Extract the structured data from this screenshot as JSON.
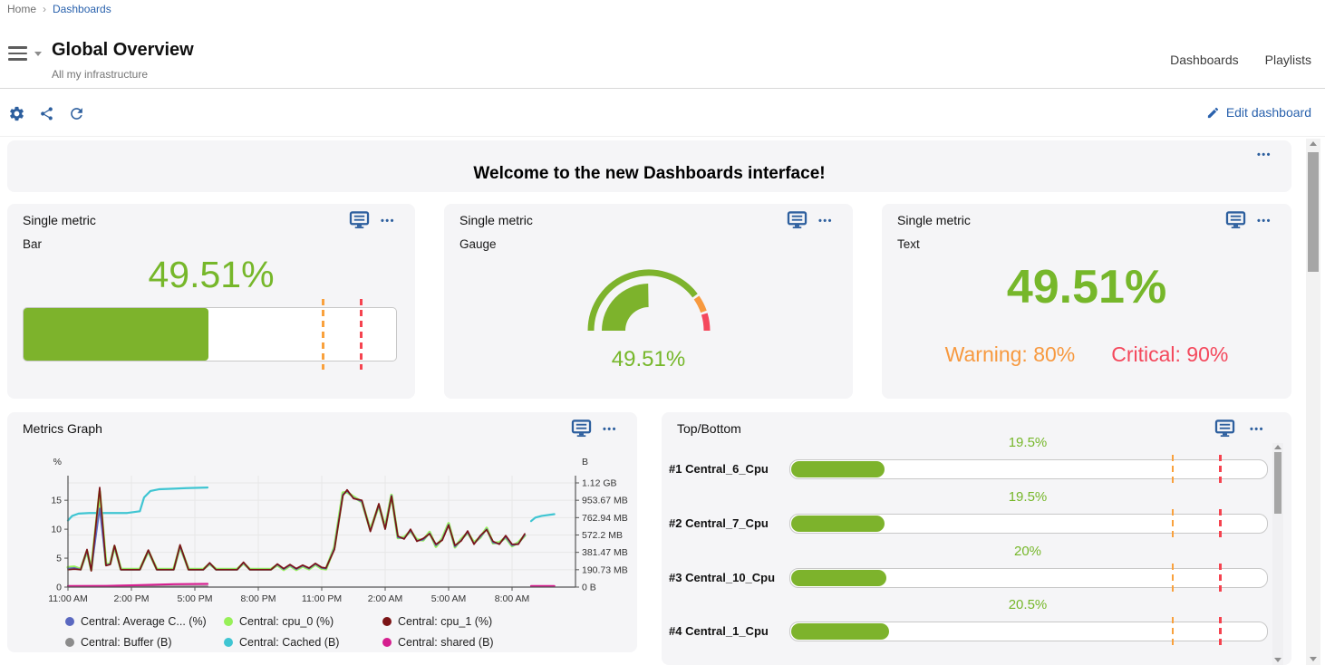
{
  "breadcrumb": {
    "home": "Home",
    "separator": "›",
    "current": "Dashboards"
  },
  "header": {
    "title": "Global Overview",
    "subtitle": "All my infrastructure",
    "tabs": [
      "Dashboards",
      "Playlists"
    ]
  },
  "toolbar": {
    "edit_label": "Edit dashboard"
  },
  "ui": {
    "menu_dots": "•••"
  },
  "banner": {
    "title": "Welcome to the new Dashboards interface!"
  },
  "colors": {
    "accent_blue": "#2d5f9e",
    "link_blue": "#2a62ad",
    "green": "#76b72a",
    "bar_green": "#7db32c",
    "orange": "#f7993f",
    "red": "#f4485c",
    "dash_orange": "#f9a13d",
    "dash_red": "#f5434f"
  },
  "single_metric_cards": {
    "title": "Single metric",
    "value_text": "49.51%",
    "value_pct": 49.51,
    "warning_pct": 80,
    "critical_pct": 90,
    "bar": {
      "label": "Bar"
    },
    "gauge": {
      "label": "Gauge"
    },
    "text": {
      "label": "Text",
      "warning_text": "Warning: 80%",
      "critical_text": "Critical: 90%"
    }
  },
  "metrics_graph": {
    "title": "Metrics Graph"
  },
  "chart_data": {
    "type": "line",
    "title": "Metrics Graph",
    "x_axis": {
      "ticks": [
        "11:00 AM",
        "2:00 PM",
        "5:00 PM",
        "8:00 PM",
        "11:00 PM",
        "2:00 AM",
        "5:00 AM",
        "8:00 AM"
      ],
      "tick_hours": [
        0,
        3,
        6,
        9,
        12,
        15,
        18,
        21
      ],
      "range_hours": [
        0,
        24
      ]
    },
    "y_left": {
      "label": "%",
      "ticks": [
        0,
        5,
        10,
        15
      ],
      "max": 18
    },
    "y_right": {
      "label": "B",
      "ticks": [
        "0 B",
        "190.73 MB",
        "381.47 MB",
        "572.2 MB",
        "762.94 MB",
        "953.67 MB",
        "1.12 GB"
      ]
    },
    "grid": true,
    "legend_position": "bottom",
    "legend": [
      {
        "label": "Central: Average C... (%)",
        "color": "#5a68c0"
      },
      {
        "label": "Central: cpu_0 (%)",
        "color": "#97f058"
      },
      {
        "label": "Central: cpu_1 (%)",
        "color": "#7b1416"
      },
      {
        "label": "Central: Buffer (B)",
        "color": "#8c8c8c"
      },
      {
        "label": "Central: Cached (B)",
        "color": "#3fc5d2"
      },
      {
        "label": "Central: shared (B)",
        "color": "#d51f8f"
      }
    ],
    "series": [
      {
        "name": "Central: Buffer (B)",
        "color": "#8c8c8c",
        "width": 2,
        "segments": [
          [
            [
              0,
              0.08
            ],
            [
              6.6,
              0.12
            ]
          ],
          [
            [
              21.9,
              0.08
            ],
            [
              23,
              0.08
            ]
          ]
        ]
      },
      {
        "name": "Central: shared (B)",
        "color": "#d51f8f",
        "width": 2.2,
        "segments": [
          [
            [
              0,
              0.18
            ],
            [
              1.8,
              0.2
            ],
            [
              3,
              0.3
            ],
            [
              4,
              0.4
            ],
            [
              5,
              0.5
            ],
            [
              6.6,
              0.55
            ]
          ],
          [
            [
              21.9,
              0.18
            ],
            [
              23,
              0.18
            ]
          ]
        ]
      },
      {
        "name": "Central: Cached (B)",
        "color": "#3fc5d2",
        "width": 2.2,
        "segments": [
          [
            [
              0,
              11.5
            ],
            [
              0.2,
              12.3
            ],
            [
              0.5,
              12.7
            ],
            [
              1,
              12.8
            ],
            [
              2.8,
              12.8
            ],
            [
              3.2,
              13
            ],
            [
              3.4,
              13.1
            ],
            [
              3.6,
              15.5
            ],
            [
              3.9,
              16.6
            ],
            [
              4.3,
              16.9
            ],
            [
              5,
              17
            ],
            [
              5.6,
              17.1
            ],
            [
              6.6,
              17.2
            ]
          ],
          [
            [
              21.9,
              11.4
            ],
            [
              22.1,
              12
            ],
            [
              22.4,
              12.3
            ],
            [
              23,
              12.6
            ]
          ]
        ]
      },
      {
        "name": "Central: cpu_0 (%)",
        "color": "#97f058",
        "width": 3,
        "segments": [
          [
            [
              0,
              3.4
            ],
            [
              0.3,
              3.5
            ],
            [
              0.6,
              3.1
            ],
            [
              0.9,
              6.2
            ],
            [
              1.1,
              3
            ],
            [
              1.5,
              16.5
            ],
            [
              1.8,
              3.9
            ],
            [
              2,
              4.1
            ],
            [
              2.2,
              7
            ],
            [
              2.5,
              3.1
            ],
            [
              3.4,
              3.1
            ],
            [
              3.8,
              6.2
            ],
            [
              4.2,
              3.1
            ],
            [
              5,
              3.1
            ],
            [
              5.3,
              7
            ],
            [
              5.7,
              3.1
            ],
            [
              6.4,
              3.1
            ],
            [
              6.7,
              4
            ],
            [
              7,
              3.1
            ],
            [
              8,
              3.1
            ],
            [
              8.3,
              4.1
            ],
            [
              8.6,
              3.1
            ],
            [
              9.6,
              3.1
            ],
            [
              9.9,
              3.8
            ],
            [
              10.2,
              3
            ],
            [
              10.5,
              3.7
            ],
            [
              10.8,
              3
            ],
            [
              11.1,
              3.6
            ],
            [
              11.4,
              3.1
            ],
            [
              11.7,
              3.9
            ],
            [
              12,
              3.2
            ],
            [
              12.2,
              3.1
            ],
            [
              12.6,
              6.9
            ],
            [
              13,
              16.3
            ],
            [
              13.2,
              16.4
            ],
            [
              13.5,
              15.6
            ],
            [
              13.9,
              14.7
            ],
            [
              14.3,
              9.9
            ],
            [
              14.7,
              14.1
            ],
            [
              15,
              10.3
            ],
            [
              15.3,
              15.9
            ],
            [
              15.6,
              8.5
            ],
            [
              15.9,
              8.6
            ],
            [
              16.2,
              9.7
            ],
            [
              16.5,
              8.2
            ],
            [
              16.8,
              8.1
            ],
            [
              17.1,
              9.5
            ],
            [
              17.4,
              7
            ],
            [
              17.7,
              8.4
            ],
            [
              18,
              11
            ],
            [
              18.3,
              6.9
            ],
            [
              18.6,
              8.3
            ],
            [
              18.9,
              9.4
            ],
            [
              19.2,
              7.7
            ],
            [
              19.5,
              8.6
            ],
            [
              19.8,
              10.2
            ],
            [
              20.1,
              7.6
            ],
            [
              20.4,
              7.7
            ],
            [
              20.7,
              8.6
            ],
            [
              21,
              7.1
            ],
            [
              21.3,
              7.7
            ],
            [
              21.6,
              8.9
            ]
          ]
        ]
      },
      {
        "name": "Central: Average C... (%)",
        "color": "#5a68c0",
        "width": 1.8,
        "segments": [
          [
            [
              0,
              3.2
            ],
            [
              0.3,
              3.3
            ],
            [
              0.6,
              3
            ],
            [
              0.9,
              6.3
            ],
            [
              1.1,
              2.9
            ],
            [
              1.5,
              13.6
            ],
            [
              1.8,
              3.8
            ],
            [
              2,
              4
            ],
            [
              2.2,
              7.1
            ],
            [
              2.5,
              3
            ],
            [
              3.4,
              3
            ],
            [
              3.8,
              6.3
            ],
            [
              4.2,
              3
            ],
            [
              5,
              3
            ],
            [
              5.3,
              7.1
            ],
            [
              5.7,
              3
            ],
            [
              6.4,
              3
            ],
            [
              6.7,
              4.1
            ],
            [
              7,
              3
            ],
            [
              8,
              3
            ],
            [
              8.3,
              4.2
            ],
            [
              8.6,
              3
            ],
            [
              9.6,
              3
            ],
            [
              9.9,
              3.9
            ],
            [
              10.2,
              3.1
            ],
            [
              10.5,
              3.8
            ],
            [
              10.8,
              3.1
            ],
            [
              11.1,
              3.7
            ],
            [
              11.4,
              3.2
            ],
            [
              11.7,
              4
            ],
            [
              12,
              3.3
            ],
            [
              12.2,
              3.2
            ],
            [
              12.6,
              6.7
            ],
            [
              13,
              16
            ],
            [
              13.2,
              16.6
            ],
            [
              13.5,
              15.4
            ],
            [
              13.9,
              14.8
            ],
            [
              14.3,
              9.7
            ],
            [
              14.7,
              14.2
            ],
            [
              15,
              10.1
            ],
            [
              15.3,
              15.8
            ],
            [
              15.6,
              8.6
            ],
            [
              15.9,
              8.4
            ],
            [
              16.2,
              9.8
            ],
            [
              16.5,
              8
            ],
            [
              16.8,
              8.2
            ],
            [
              17.1,
              9.3
            ],
            [
              17.4,
              7.2
            ],
            [
              17.7,
              8.2
            ],
            [
              18,
              10.8
            ],
            [
              18.3,
              7
            ],
            [
              18.6,
              8.1
            ],
            [
              18.9,
              9.5
            ],
            [
              19.2,
              7.5
            ],
            [
              19.5,
              8.7
            ],
            [
              19.8,
              10
            ],
            [
              20.1,
              7.7
            ],
            [
              20.4,
              7.5
            ],
            [
              20.7,
              8.7
            ],
            [
              21,
              7.2
            ],
            [
              21.3,
              7.5
            ],
            [
              21.6,
              9
            ]
          ]
        ]
      },
      {
        "name": "Central: cpu_1 (%)",
        "color": "#7b1416",
        "width": 1.7,
        "segments": [
          [
            [
              0,
              3
            ],
            [
              0.3,
              3.1
            ],
            [
              0.6,
              3
            ],
            [
              0.9,
              6.5
            ],
            [
              1.1,
              2.8
            ],
            [
              1.5,
              17.2
            ],
            [
              1.8,
              3.7
            ],
            [
              2,
              3.9
            ],
            [
              2.2,
              7.2
            ],
            [
              2.5,
              3
            ],
            [
              3.4,
              3
            ],
            [
              3.8,
              6.4
            ],
            [
              4.2,
              3
            ],
            [
              5,
              3
            ],
            [
              5.3,
              7.3
            ],
            [
              5.7,
              3
            ],
            [
              6.4,
              3
            ],
            [
              6.7,
              4.2
            ],
            [
              7,
              3
            ],
            [
              8,
              3
            ],
            [
              8.3,
              4.3
            ],
            [
              8.6,
              3
            ],
            [
              9.6,
              3
            ],
            [
              9.9,
              4
            ],
            [
              10.2,
              3.2
            ],
            [
              10.5,
              3.9
            ],
            [
              10.8,
              3.2
            ],
            [
              11.1,
              3.8
            ],
            [
              11.4,
              3.3
            ],
            [
              11.7,
              4.1
            ],
            [
              12,
              3.4
            ],
            [
              12.2,
              3.3
            ],
            [
              12.6,
              6.5
            ],
            [
              13,
              15.8
            ],
            [
              13.2,
              16.8
            ],
            [
              13.5,
              15.3
            ],
            [
              13.9,
              15
            ],
            [
              14.3,
              9.6
            ],
            [
              14.7,
              14.4
            ],
            [
              15,
              10
            ],
            [
              15.3,
              15.7
            ],
            [
              15.6,
              8.8
            ],
            [
              15.9,
              8.3
            ],
            [
              16.2,
              10
            ],
            [
              16.5,
              7.9
            ],
            [
              16.8,
              8.4
            ],
            [
              17.1,
              9.2
            ],
            [
              17.4,
              7.4
            ],
            [
              17.7,
              8.1
            ],
            [
              18,
              10.7
            ],
            [
              18.3,
              7.2
            ],
            [
              18.6,
              8
            ],
            [
              18.9,
              9.7
            ],
            [
              19.2,
              7.4
            ],
            [
              19.5,
              8.9
            ],
            [
              19.8,
              9.9
            ],
            [
              20.1,
              7.9
            ],
            [
              20.4,
              7.4
            ],
            [
              20.7,
              8.9
            ],
            [
              21,
              7.4
            ],
            [
              21.3,
              7.4
            ],
            [
              21.6,
              9.2
            ]
          ]
        ]
      }
    ]
  },
  "top_bottom": {
    "title": "Top/Bottom",
    "warning_pct": 80,
    "critical_pct": 90,
    "rows": [
      {
        "rank": "#1",
        "name": "Central_6_Cpu",
        "value_pct": 19.5,
        "value_label": "19.5%"
      },
      {
        "rank": "#2",
        "name": "Central_7_Cpu",
        "value_pct": 19.5,
        "value_label": "19.5%"
      },
      {
        "rank": "#3",
        "name": "Central_10_Cpu",
        "value_pct": 20,
        "value_label": "20%"
      },
      {
        "rank": "#4",
        "name": "Central_1_Cpu",
        "value_pct": 20.5,
        "value_label": "20.5%"
      }
    ]
  }
}
